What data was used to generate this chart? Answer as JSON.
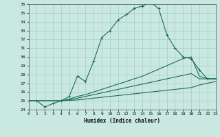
{
  "xlabel": "Humidex (Indice chaleur)",
  "bg_color": "#c8e8e0",
  "line_color": "#1a6b5a",
  "grid_color": "#a8ccc4",
  "ylim": [
    24,
    36
  ],
  "xlim": [
    0,
    23
  ],
  "yticks": [
    24,
    25,
    26,
    27,
    28,
    29,
    30,
    31,
    32,
    33,
    34,
    35,
    36
  ],
  "xticks": [
    0,
    1,
    2,
    3,
    4,
    5,
    6,
    7,
    8,
    9,
    10,
    11,
    12,
    13,
    14,
    15,
    16,
    17,
    18,
    19,
    20,
    21,
    22,
    23
  ],
  "line1_x": [
    0,
    1,
    2,
    3,
    4,
    5,
    6,
    7,
    8,
    9,
    10,
    11,
    12,
    13,
    14,
    15,
    16,
    17,
    18,
    19,
    20,
    21,
    22,
    23
  ],
  "line1_y": [
    25.0,
    25.0,
    24.3,
    24.7,
    25.0,
    25.5,
    27.8,
    27.2,
    29.5,
    32.2,
    33.0,
    34.2,
    34.8,
    35.5,
    35.8,
    36.2,
    35.5,
    32.5,
    31.0,
    30.0,
    29.8,
    28.5,
    27.5,
    27.5
  ],
  "line2_x": [
    0,
    1,
    2,
    3,
    4,
    5,
    6,
    7,
    8,
    9,
    10,
    11,
    12,
    13,
    14,
    15,
    16,
    17,
    18,
    19,
    20,
    21,
    22,
    23
  ],
  "line2_y": [
    25.0,
    25.0,
    25.0,
    25.0,
    25.0,
    25.2,
    25.5,
    25.7,
    26.0,
    26.3,
    26.6,
    26.9,
    27.2,
    27.5,
    27.8,
    28.2,
    28.6,
    29.0,
    29.4,
    29.8,
    30.0,
    27.8,
    27.5,
    27.5
  ],
  "line3_x": [
    0,
    1,
    2,
    3,
    4,
    5,
    6,
    7,
    8,
    9,
    10,
    11,
    12,
    13,
    14,
    15,
    16,
    17,
    18,
    19,
    20,
    21,
    22,
    23
  ],
  "line3_y": [
    25.0,
    25.0,
    25.0,
    25.0,
    25.0,
    25.1,
    25.3,
    25.5,
    25.7,
    25.9,
    26.1,
    26.3,
    26.5,
    26.7,
    26.9,
    27.1,
    27.3,
    27.5,
    27.7,
    27.9,
    28.1,
    27.5,
    27.5,
    27.5
  ],
  "line4_x": [
    0,
    1,
    2,
    3,
    4,
    5,
    6,
    7,
    8,
    9,
    10,
    11,
    12,
    13,
    14,
    15,
    16,
    17,
    18,
    19,
    20,
    21,
    22,
    23
  ],
  "line4_y": [
    25.0,
    25.0,
    25.0,
    25.0,
    25.0,
    25.05,
    25.1,
    25.2,
    25.3,
    25.4,
    25.5,
    25.6,
    25.7,
    25.8,
    25.9,
    26.0,
    26.1,
    26.2,
    26.3,
    26.4,
    26.5,
    26.8,
    27.0,
    27.2
  ]
}
